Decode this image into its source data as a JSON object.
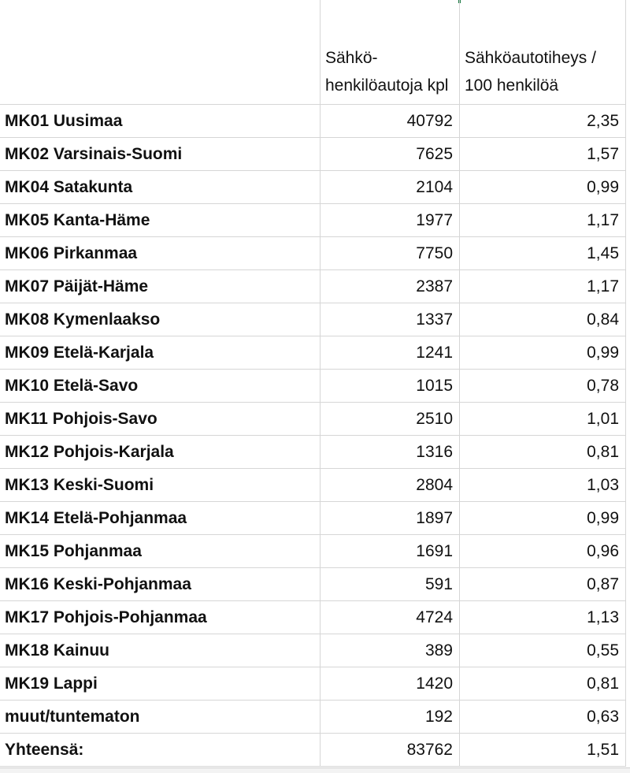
{
  "header": {
    "col1": "",
    "col2": "Sähkö-henkilöautoja kpl",
    "col3": "Sähköautotiheys / 100 henkilöä"
  },
  "rows": [
    {
      "region": "MK01 Uusimaa",
      "count": "40792",
      "density": "2,35"
    },
    {
      "region": "MK02 Varsinais-Suomi",
      "count": "7625",
      "density": "1,57"
    },
    {
      "region": "MK04 Satakunta",
      "count": "2104",
      "density": "0,99"
    },
    {
      "region": "MK05 Kanta-Häme",
      "count": "1977",
      "density": "1,17"
    },
    {
      "region": "MK06 Pirkanmaa",
      "count": "7750",
      "density": "1,45"
    },
    {
      "region": "MK07 Päijät-Häme",
      "count": "2387",
      "density": "1,17"
    },
    {
      "region": "MK08 Kymenlaakso",
      "count": "1337",
      "density": "0,84"
    },
    {
      "region": "MK09 Etelä-Karjala",
      "count": "1241",
      "density": "0,99"
    },
    {
      "region": "MK10 Etelä-Savo",
      "count": "1015",
      "density": "0,78"
    },
    {
      "region": "MK11 Pohjois-Savo",
      "count": "2510",
      "density": "1,01"
    },
    {
      "region": "MK12 Pohjois-Karjala",
      "count": "1316",
      "density": "0,81"
    },
    {
      "region": "MK13 Keski-Suomi",
      "count": "2804",
      "density": "1,03"
    },
    {
      "region": "MK14 Etelä-Pohjanmaa",
      "count": "1897",
      "density": "0,99"
    },
    {
      "region": "MK15 Pohjanmaa",
      "count": "1691",
      "density": "0,96"
    },
    {
      "region": "MK16 Keski-Pohjanmaa",
      "count": "591",
      "density": "0,87"
    },
    {
      "region": "MK17 Pohjois-Pohjanmaa",
      "count": "4724",
      "density": "1,13"
    },
    {
      "region": "MK18 Kainuu",
      "count": "389",
      "density": "0,55"
    },
    {
      "region": "MK19 Lappi",
      "count": "1420",
      "density": "0,81"
    },
    {
      "region": "muut/tuntematon",
      "count": "192",
      "density": "0,63"
    },
    {
      "region": "Yhteensä:",
      "count": "83762",
      "density": "1,51"
    }
  ]
}
